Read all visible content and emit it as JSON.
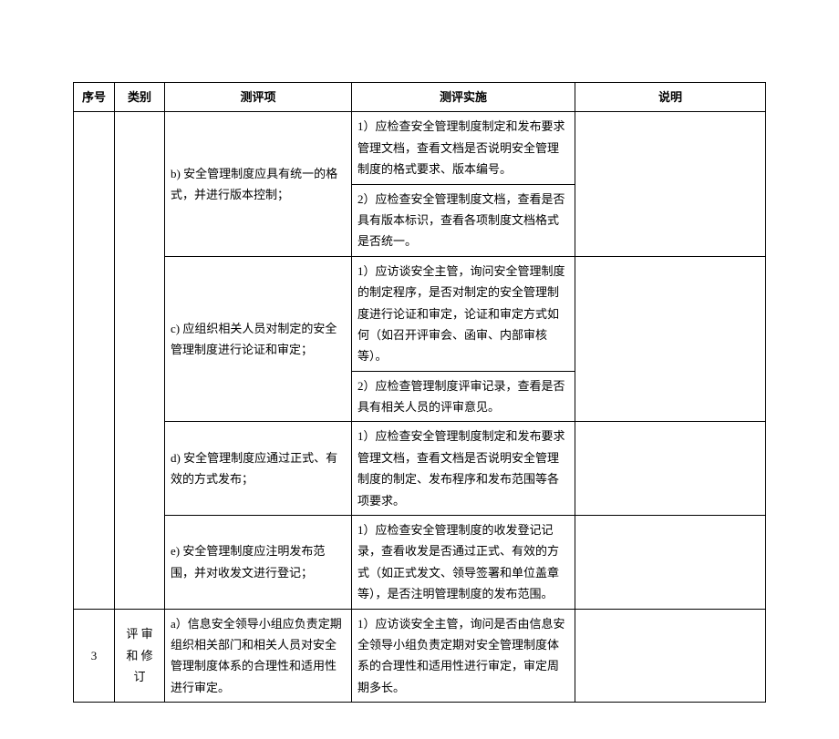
{
  "headers": {
    "seq": "序号",
    "cat": "类别",
    "item": "测评项",
    "impl": "测评实施",
    "desc": "说明"
  },
  "rows": [
    {
      "seq": "",
      "cat": "",
      "item": "b) 安全管理制度应具有统一的格式，并进行版本控制；",
      "impls": [
        "1）应检查安全管理制度制定和发布要求管理文档，查看文档是否说明安全管理制度的格式要求、版本编号。",
        "2）应检查安全管理制度文档，查看是否具有版本标识，查看各项制度文档格式是否统一。"
      ],
      "desc": ""
    },
    {
      "item": "c) 应组织相关人员对制定的安全管理制度进行论证和审定；",
      "impls": [
        "1）应访谈安全主管，询问安全管理制度的制定程序，是否对制定的安全管理制度进行论证和审定，论证和审定方式如何（如召开评审会、函审、内部审核等）。",
        "2）应检查管理制度评审记录，查看是否具有相关人员的评审意见。"
      ],
      "desc": ""
    },
    {
      "item": "d) 安全管理制度应通过正式、有效的方式发布；",
      "impls": [
        "1）应检查安全管理制度制定和发布要求管理文档，查看文档是否说明安全管理制度的制定、发布程序和发布范围等各项要求。"
      ],
      "desc": ""
    },
    {
      "item": "e) 安全管理制度应注明发布范围，并对收发文进行登记；",
      "impls": [
        "1）应检查安全管理制度的收发登记记录，查看收发是否通过正式、有效的方式（如正式发文、领导签署和单位盖章等），是否注明管理制度的发布范围。"
      ],
      "desc": ""
    }
  ],
  "row3": {
    "seq": "3",
    "cat": "评 审和 修订",
    "item": "a）信息安全领导小组应负责定期组织相关部门和相关人员对安全管理制度体系的合理性和适用性进行审定。",
    "impls": [
      "1）应访谈安全主管，询问是否由信息安全领导小组负责定期对安全管理制度体系的合理性和适用性进行审定，审定周期多长。"
    ],
    "desc": ""
  }
}
